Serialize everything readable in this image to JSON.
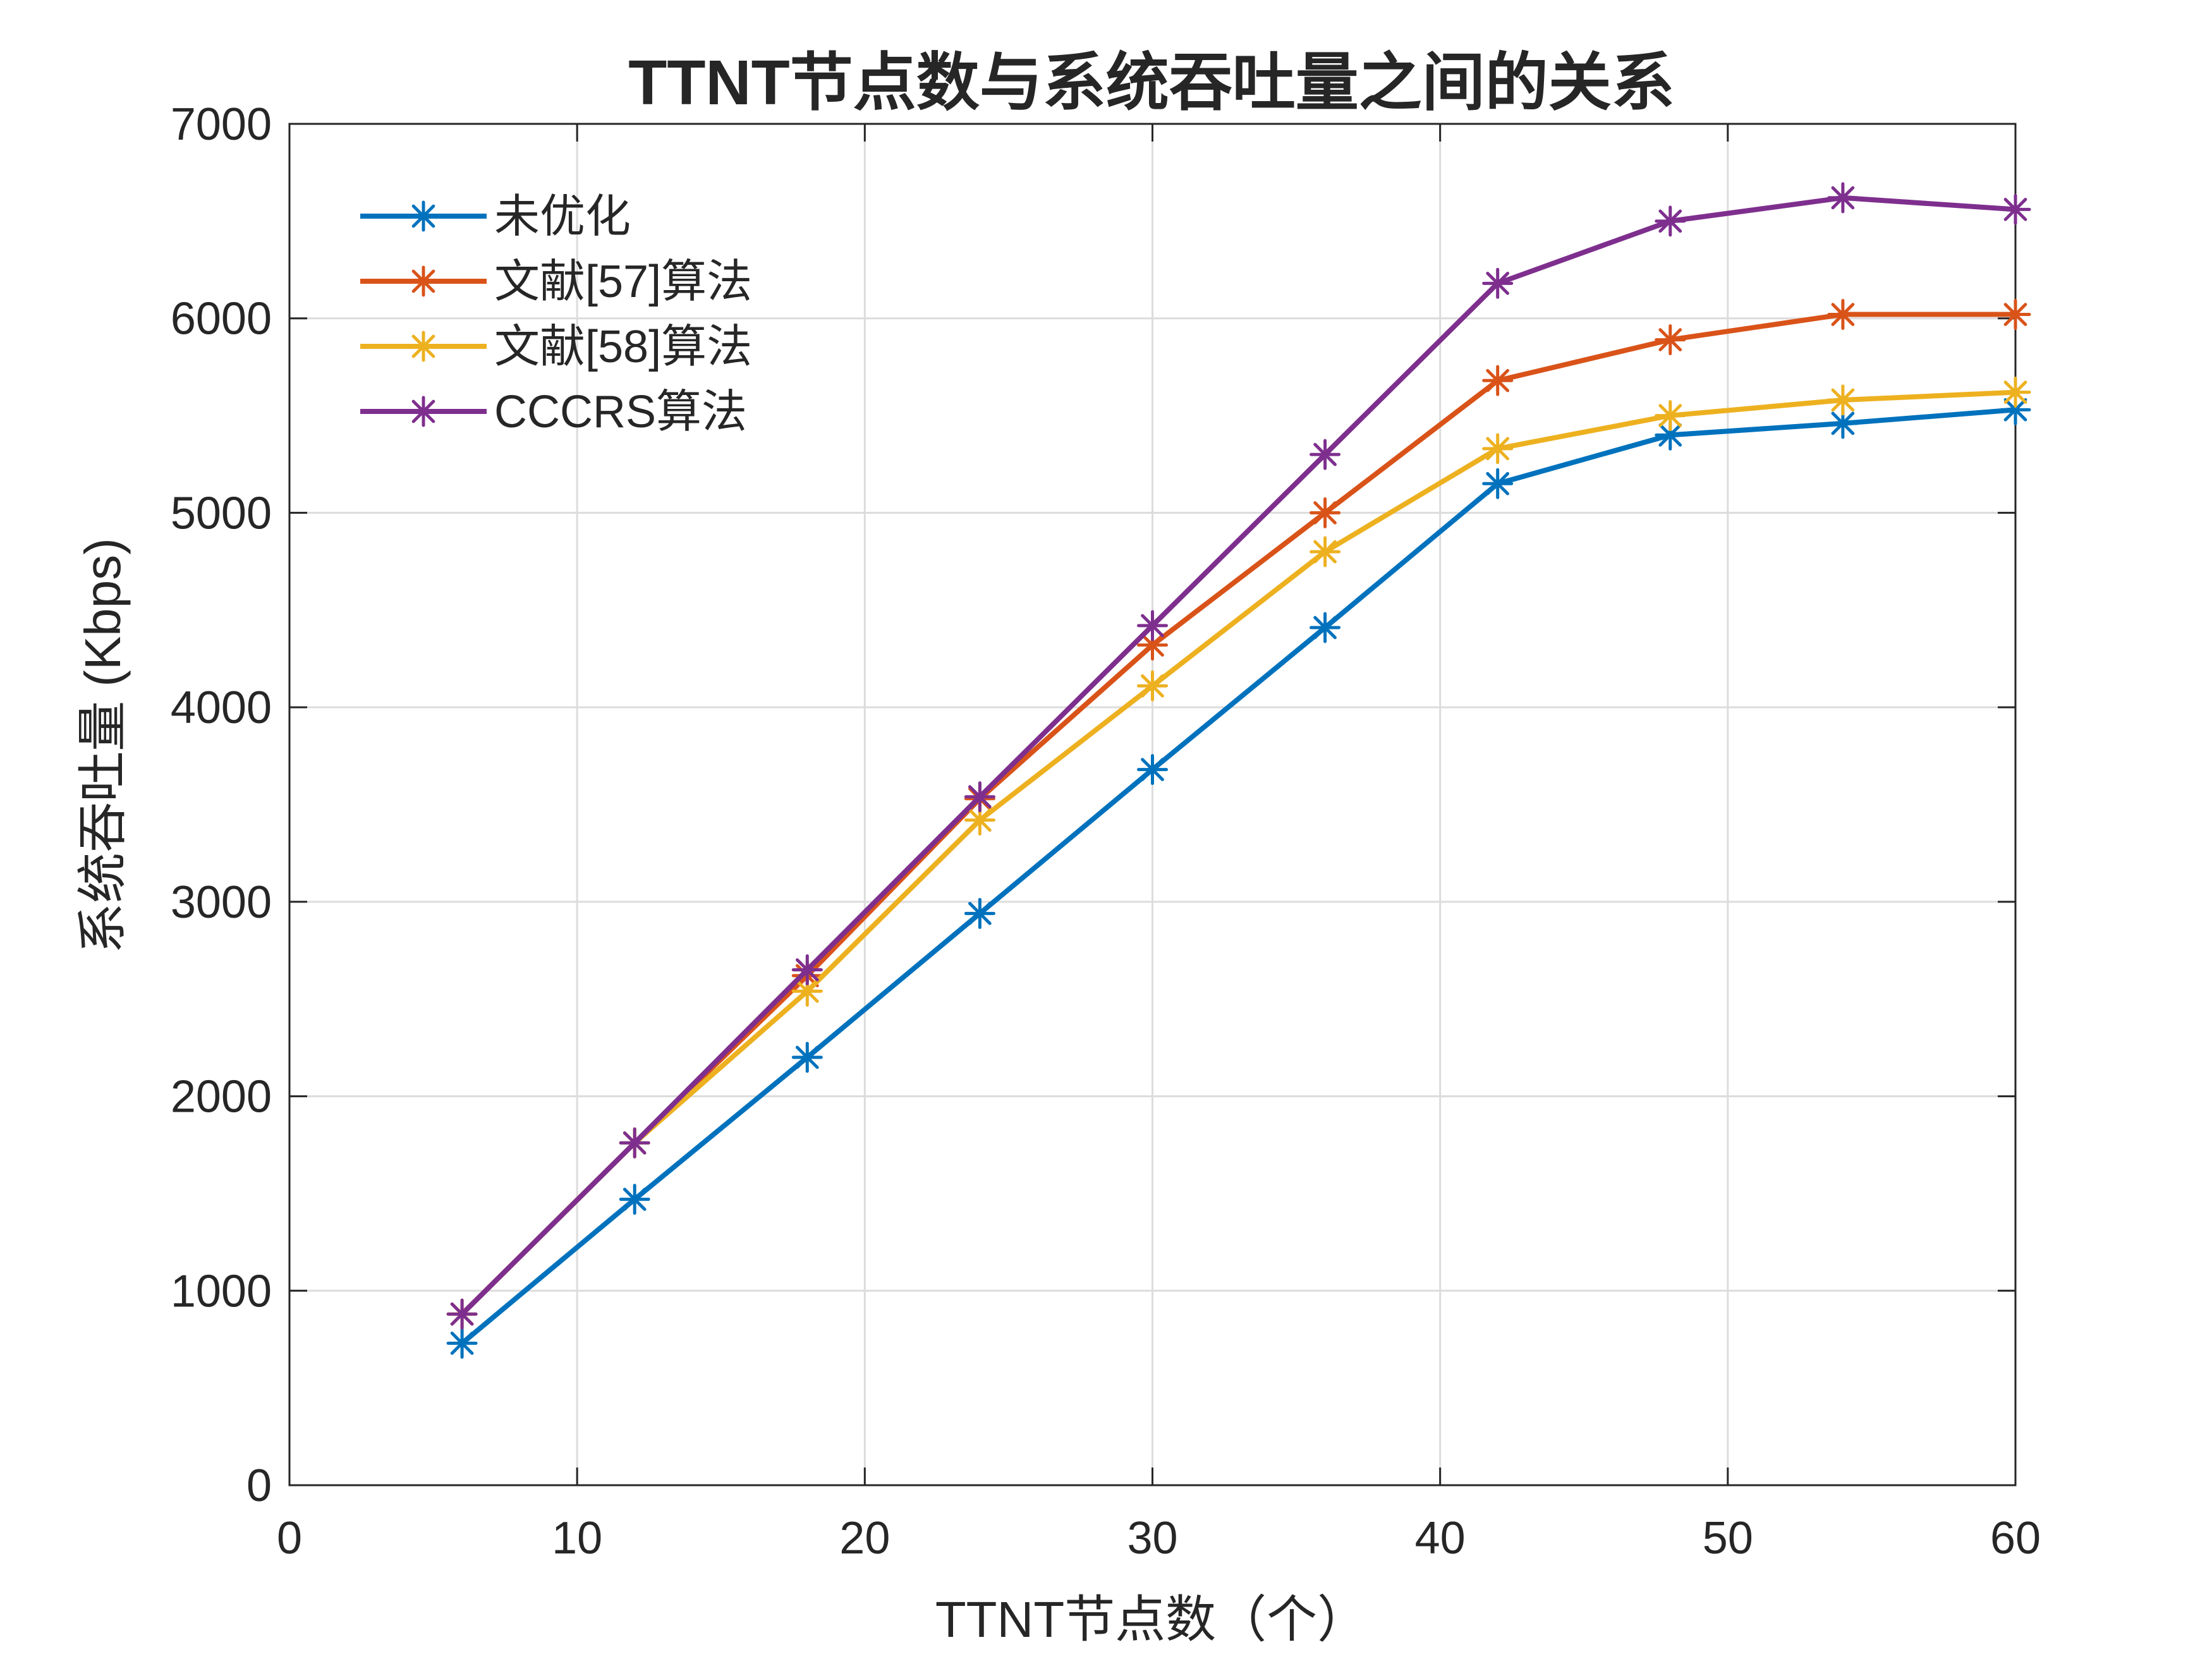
{
  "chart_data": {
    "type": "line",
    "title": "TTNT节点数与系统吞吐量之间的关系",
    "xlabel": "TTNT节点数（个）",
    "ylabel": "系统吞吐量 (Kbps)",
    "xlim": [
      0,
      60
    ],
    "ylim": [
      0,
      7000
    ],
    "xticks": [
      0,
      10,
      20,
      30,
      40,
      50,
      60
    ],
    "yticks": [
      0,
      1000,
      2000,
      3000,
      4000,
      5000,
      6000,
      7000
    ],
    "grid": true,
    "legend_position": "top-left",
    "marker": "asterisk",
    "x": [
      6,
      12,
      18,
      24,
      30,
      36,
      42,
      48,
      54,
      60
    ],
    "series": [
      {
        "name": "未优化",
        "color": "#0072BD",
        "values": [
          730,
          1470,
          2200,
          2940,
          3680,
          4410,
          5150,
          5400,
          5460,
          5530
        ]
      },
      {
        "name": "文献[57]算法",
        "color": "#D95319",
        "values": [
          880,
          1760,
          2620,
          3530,
          4320,
          5000,
          5680,
          5890,
          6020,
          6020
        ]
      },
      {
        "name": "文献[58]算法",
        "color": "#EDB120",
        "values": [
          880,
          1760,
          2540,
          3420,
          4110,
          4800,
          5330,
          5500,
          5580,
          5620
        ]
      },
      {
        "name": "CCCRS算法",
        "color": "#7E2F8E",
        "values": [
          880,
          1760,
          2650,
          3540,
          4420,
          5300,
          6180,
          6500,
          6620,
          6560
        ]
      }
    ]
  }
}
